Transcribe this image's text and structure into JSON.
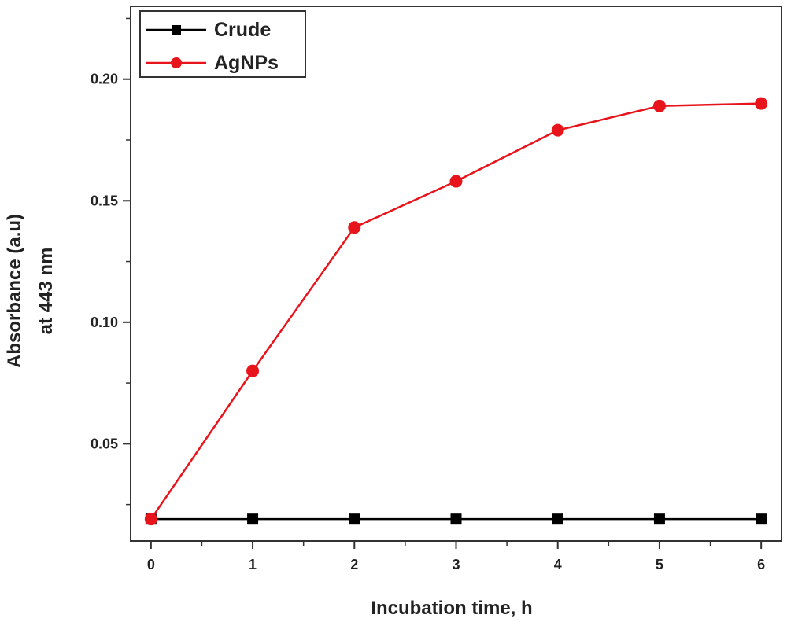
{
  "chart_data": {
    "type": "line",
    "title": "",
    "xlabel": "Incubation time, h",
    "ylabel_lines": [
      "Absorbance (a.u)",
      "at 443 nm"
    ],
    "xlim": [
      -0.2,
      6.2
    ],
    "ylim": [
      0.01,
      0.23
    ],
    "x_ticks": [
      0,
      1,
      2,
      3,
      4,
      5,
      6
    ],
    "x_tick_labels": [
      "0",
      "1",
      "2",
      "3",
      "4",
      "5",
      "6"
    ],
    "y_ticks": [
      0.05,
      0.1,
      0.15,
      0.2
    ],
    "y_tick_labels": [
      "0.05",
      "0.10",
      "0.15",
      "0.20"
    ],
    "grid": false,
    "legend_position": "top-left",
    "x": [
      0,
      1,
      2,
      3,
      4,
      5,
      6
    ],
    "series": [
      {
        "name": "Crude",
        "color": "#000000",
        "marker": "square",
        "values": [
          0.019,
          0.019,
          0.019,
          0.019,
          0.019,
          0.019,
          0.019
        ]
      },
      {
        "name": "AgNPs",
        "color": "#e8141c",
        "marker": "circle",
        "values": [
          0.019,
          0.08,
          0.139,
          0.158,
          0.179,
          0.189,
          0.19
        ]
      }
    ]
  }
}
